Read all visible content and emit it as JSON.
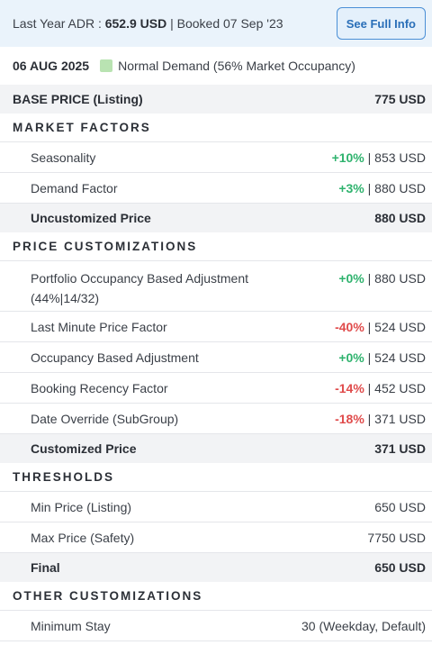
{
  "header": {
    "adr_label": "Last Year ADR :",
    "adr_value": "652.9 USD",
    "booked": "| Booked 07 Sep '23",
    "full_info_button": "See Full Info"
  },
  "date_row": {
    "date": "06 AUG 2025",
    "demand": "Normal Demand (56% Market Occupancy)",
    "demand_color": "#b9e3b2"
  },
  "base_price": {
    "label": "BASE PRICE (Listing)",
    "value": "775 USD"
  },
  "market_factors": {
    "title": "MARKET FACTORS",
    "rows": [
      {
        "label": "Seasonality",
        "change": "+10%",
        "result": "| 853 USD"
      },
      {
        "label": "Demand Factor",
        "change": "+3%",
        "result": "| 880 USD"
      }
    ],
    "subtotal": {
      "label": "Uncustomized Price",
      "value": "880 USD"
    }
  },
  "price_customizations": {
    "title": "PRICE CUSTOMIZATIONS",
    "rows": [
      {
        "label_line1": "Portfolio Occupancy Based Adjustment",
        "label_line2": "(44%|14/32)",
        "change": "+0%",
        "result": "| 880 USD"
      },
      {
        "label": "Last Minute Price Factor",
        "change": "-40%",
        "result": "| 524 USD"
      },
      {
        "label": "Occupancy Based Adjustment",
        "change": "+0%",
        "result": "| 524 USD"
      },
      {
        "label": "Booking Recency Factor",
        "change": "-14%",
        "result": "| 452 USD"
      },
      {
        "label": "Date Override (SubGroup)",
        "change": "-18%",
        "result": "| 371 USD"
      }
    ],
    "subtotal": {
      "label": "Customized Price",
      "value": "371 USD"
    }
  },
  "thresholds": {
    "title": "THRESHOLDS",
    "rows": [
      {
        "label": "Min Price (Listing)",
        "value": "650 USD"
      },
      {
        "label": "Max Price (Safety)",
        "value": "7750 USD"
      }
    ],
    "final": {
      "label": "Final",
      "value": "650 USD"
    }
  },
  "other_customizations": {
    "title": "OTHER CUSTOMIZATIONS",
    "rows": [
      {
        "label": "Minimum Stay",
        "value": "30 (Weekday, Default)"
      }
    ]
  },
  "colors": {
    "positive": "#2fb36e",
    "negative": "#e04b4b",
    "accent": "#2a6fb8"
  }
}
